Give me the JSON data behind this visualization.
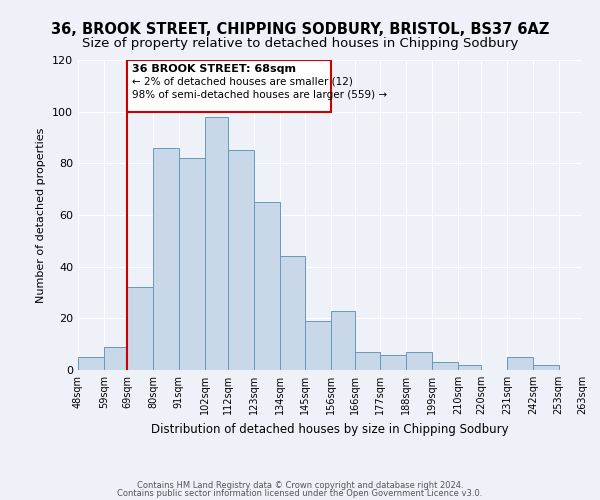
{
  "title": "36, BROOK STREET, CHIPPING SODBURY, BRISTOL, BS37 6AZ",
  "subtitle": "Size of property relative to detached houses in Chipping Sodbury",
  "xlabel": "Distribution of detached houses by size in Chipping Sodbury",
  "ylabel": "Number of detached properties",
  "footer1": "Contains HM Land Registry data © Crown copyright and database right 2024.",
  "footer2": "Contains public sector information licensed under the Open Government Licence v3.0.",
  "bin_labels": [
    "48sqm",
    "59sqm",
    "69sqm",
    "80sqm",
    "91sqm",
    "102sqm",
    "112sqm",
    "123sqm",
    "134sqm",
    "145sqm",
    "156sqm",
    "166sqm",
    "177sqm",
    "188sqm",
    "199sqm",
    "210sqm",
    "220sqm",
    "231sqm",
    "242sqm",
    "253sqm",
    "263sqm"
  ],
  "bar_heights": [
    5,
    9,
    32,
    86,
    82,
    98,
    85,
    65,
    44,
    19,
    23,
    7,
    6,
    7,
    3,
    2,
    0,
    5,
    2,
    0
  ],
  "bin_edges": [
    48,
    59,
    69,
    80,
    91,
    102,
    112,
    123,
    134,
    145,
    156,
    166,
    177,
    188,
    199,
    210,
    220,
    231,
    242,
    253,
    263
  ],
  "bar_color": "#c8d8e8",
  "bar_edge_color": "#6699bb",
  "vline_x": 69,
  "vline_color": "#cc0000",
  "annotation_text_line1": "36 BROOK STREET: 68sqm",
  "annotation_text_line2": "← 2% of detached houses are smaller (12)",
  "annotation_text_line3": "98% of semi-detached houses are larger (559) →",
  "annotation_box_color": "#cc0000",
  "annotation_fill": "#ffffff",
  "ylim": [
    0,
    120
  ],
  "yticks": [
    0,
    20,
    40,
    60,
    80,
    100,
    120
  ],
  "bg_color": "#eef2f8",
  "title_fontsize": 10.5,
  "subtitle_fontsize": 9.5
}
